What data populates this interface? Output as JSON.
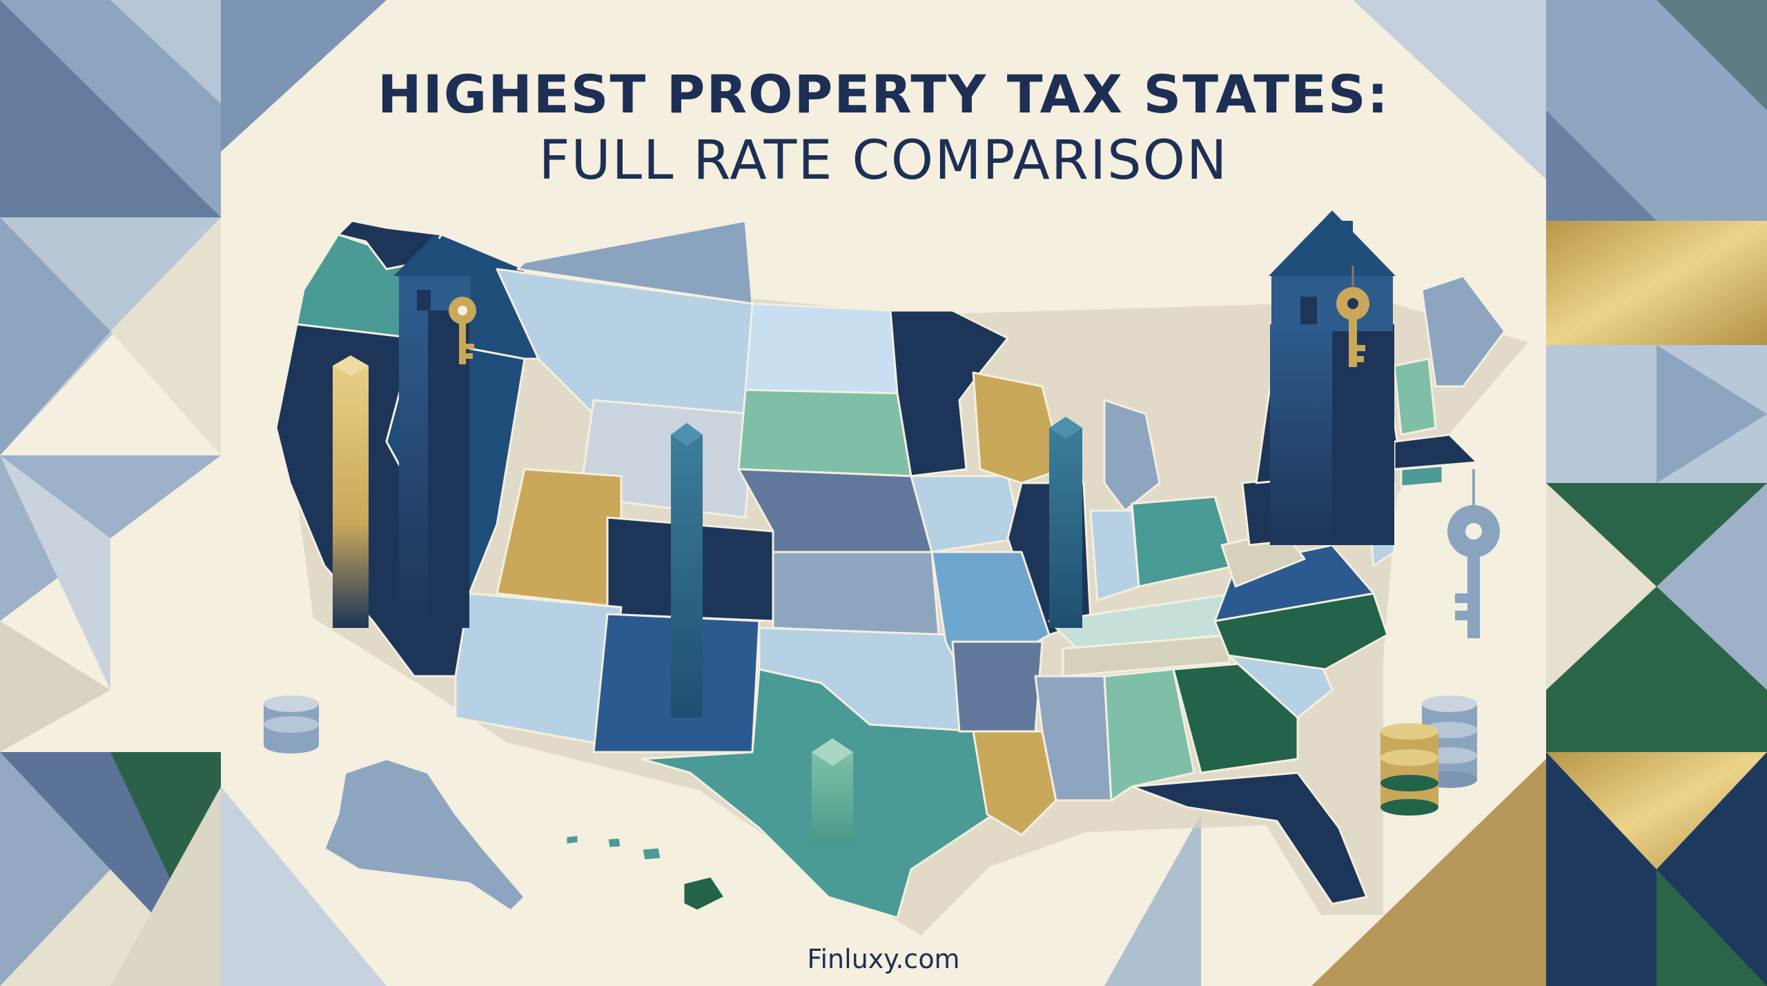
{
  "title": {
    "line1": "HIGHEST PROPERTY TAX STATES:",
    "line2": "FULL RATE COMPARISON"
  },
  "footer": {
    "site": "Finluxy.com"
  },
  "colors": {
    "background": "#f4efdf",
    "navy": "#1d3558",
    "title": "#1d2f55",
    "gold": "#c9ab58",
    "teal": "#4a9a96",
    "green": "#22634a",
    "slate": "#8aa3bf"
  },
  "icons": [
    "house-icon",
    "key-icon",
    "coin-stack-icon"
  ]
}
